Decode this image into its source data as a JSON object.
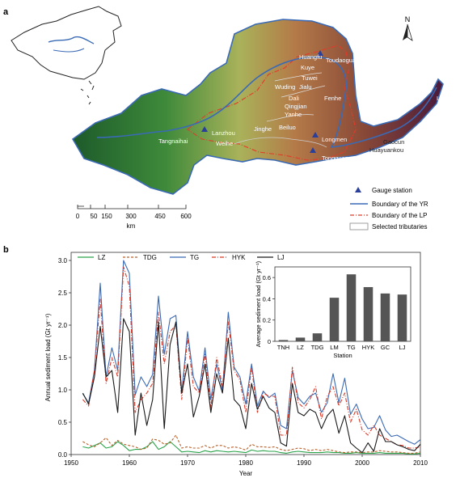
{
  "panel_a": {
    "label": "a",
    "north": "N",
    "places": [
      "Huangfu",
      "Toudaoguai",
      "Kuye",
      "Tuwei",
      "Wuding",
      "Jialu",
      "Dali",
      "Qingjian",
      "Yanhe",
      "Fenhe",
      "Lijin",
      "Lanzhou",
      "Tangnaihai",
      "Jinghe",
      "Beiluo",
      "Weihe",
      "Longmen",
      "Gaocun",
      "Huayuankou",
      "Tongguan"
    ],
    "scale": {
      "ticks": [
        "0",
        "50",
        "150",
        "300",
        "450",
        "600"
      ],
      "unit": "km"
    },
    "legend": [
      "Gauge station",
      "Boundary of the YR",
      "Boundary of the LP",
      "Selected tributaries"
    ],
    "colors": {
      "yr_boundary": "#3a6ab5",
      "lp_boundary": "#e23a2a",
      "gauge": "#2a3f9a"
    }
  },
  "panel_b": {
    "label": "b",
    "legend": [
      "LZ",
      "TDG",
      "TG",
      "HYK",
      "LJ"
    ]
  },
  "chart_data": [
    {
      "type": "line",
      "xlabel": "Year",
      "ylabel": "Annual sediment load (Gt yr⁻¹)",
      "xlim": [
        1950,
        2010
      ],
      "ylim": [
        0,
        3.0
      ],
      "xticks": [
        "1950",
        "1960",
        "1970",
        "1980",
        "1990",
        "2000",
        "2010"
      ],
      "yticks": [
        "0.0",
        "0.5",
        "1.0",
        "1.5",
        "2.0",
        "2.5",
        "3.0"
      ],
      "legend_position": "top",
      "x": [
        1952,
        1953,
        1954,
        1955,
        1956,
        1957,
        1958,
        1959,
        1960,
        1961,
        1962,
        1963,
        1964,
        1965,
        1966,
        1967,
        1968,
        1969,
        1970,
        1971,
        1972,
        1973,
        1974,
        1975,
        1976,
        1977,
        1978,
        1979,
        1980,
        1981,
        1982,
        1983,
        1984,
        1985,
        1986,
        1987,
        1988,
        1989,
        1990,
        1991,
        1992,
        1993,
        1994,
        1995,
        1996,
        1997,
        1998,
        1999,
        2000,
        2001,
        2002,
        2003,
        2004,
        2005,
        2006,
        2007,
        2008,
        2009,
        2010
      ],
      "series": [
        {
          "name": "LZ",
          "color": "#2aa34a",
          "style": "solid",
          "values": [
            0.12,
            0.1,
            0.14,
            0.18,
            0.1,
            0.12,
            0.2,
            0.14,
            0.06,
            0.08,
            0.08,
            0.12,
            0.2,
            0.08,
            0.12,
            0.2,
            0.12,
            0.04,
            0.05,
            0.04,
            0.03,
            0.06,
            0.04,
            0.06,
            0.05,
            0.04,
            0.05,
            0.04,
            0.03,
            0.07,
            0.05,
            0.06,
            0.05,
            0.05,
            0.03,
            0.02,
            0.04,
            0.05,
            0.04,
            0.03,
            0.03,
            0.03,
            0.04,
            0.03,
            0.03,
            0.02,
            0.02,
            0.03,
            0.02,
            0.02,
            0.02,
            0.03,
            0.02,
            0.02,
            0.02,
            0.02,
            0.01,
            0.01,
            0.02
          ]
        },
        {
          "name": "TDG",
          "color": "#b8602a",
          "style": "dashed",
          "values": [
            0.2,
            0.15,
            0.12,
            0.18,
            0.26,
            0.14,
            0.22,
            0.16,
            0.14,
            0.12,
            0.08,
            0.1,
            0.24,
            0.22,
            0.16,
            0.18,
            0.3,
            0.1,
            0.12,
            0.1,
            0.1,
            0.14,
            0.1,
            0.14,
            0.14,
            0.1,
            0.12,
            0.1,
            0.07,
            0.16,
            0.12,
            0.12,
            0.11,
            0.12,
            0.08,
            0.06,
            0.08,
            0.1,
            0.09,
            0.06,
            0.08,
            0.06,
            0.08,
            0.06,
            0.04,
            0.03,
            0.04,
            0.04,
            0.03,
            0.04,
            0.04,
            0.06,
            0.05,
            0.04,
            0.04,
            0.03,
            0.02,
            0.02,
            0.04
          ]
        },
        {
          "name": "TG",
          "color": "#3a6ab5",
          "style": "solid",
          "values": [
            0.94,
            0.8,
            1.3,
            2.65,
            1.2,
            1.65,
            1.3,
            3.0,
            2.8,
            0.92,
            1.2,
            1.05,
            1.24,
            2.45,
            1.55,
            2.1,
            2.15,
            0.95,
            1.9,
            1.2,
            0.98,
            1.65,
            0.85,
            1.4,
            1.0,
            2.2,
            1.35,
            1.2,
            0.78,
            1.4,
            0.75,
            0.98,
            0.88,
            0.95,
            0.45,
            0.4,
            1.3,
            0.88,
            0.78,
            0.9,
            0.95,
            0.65,
            0.8,
            1.25,
            0.8,
            1.18,
            0.62,
            0.78,
            0.55,
            0.4,
            0.42,
            0.6,
            0.38,
            0.28,
            0.3,
            0.25,
            0.2,
            0.16,
            0.23
          ]
        },
        {
          "name": "HYK",
          "color": "#d83a2a",
          "style": "dashdot",
          "values": [
            0.85,
            0.75,
            1.3,
            2.4,
            1.1,
            1.5,
            1.2,
            2.9,
            2.6,
            0.65,
            0.85,
            0.95,
            1.1,
            2.2,
            1.4,
            1.9,
            2.0,
            0.85,
            1.8,
            1.05,
            0.95,
            1.55,
            0.72,
            1.5,
            1.05,
            2.05,
            1.3,
            1.15,
            0.65,
            1.35,
            0.65,
            0.95,
            0.9,
            0.9,
            0.3,
            0.3,
            1.35,
            0.8,
            0.72,
            0.85,
            1.05,
            0.55,
            0.9,
            1.05,
            0.75,
            0.95,
            0.5,
            0.7,
            0.38,
            0.3,
            0.45,
            0.3,
            0.25,
            0.2,
            0.15,
            0.14,
            0.1,
            0.1,
            0.12
          ]
        },
        {
          "name": "LJ",
          "color": "#1a1a1a",
          "style": "solid",
          "values": [
            0.95,
            0.78,
            1.2,
            1.98,
            1.2,
            1.3,
            0.65,
            2.1,
            1.9,
            0.3,
            0.95,
            0.45,
            0.85,
            2.05,
            0.4,
            1.7,
            2.05,
            0.95,
            1.4,
            0.58,
            0.9,
            1.4,
            0.65,
            1.25,
            0.95,
            1.8,
            0.85,
            0.75,
            0.4,
            1.1,
            0.7,
            0.9,
            0.72,
            0.65,
            0.18,
            0.13,
            1.1,
            0.65,
            0.6,
            0.7,
            0.65,
            0.4,
            0.6,
            0.7,
            0.33,
            0.6,
            0.18,
            0.1,
            0.03,
            0.18,
            0.05,
            0.4,
            0.2,
            0.2,
            0.15,
            0.12,
            0.08,
            0.06,
            0.16
          ]
        }
      ]
    },
    {
      "type": "bar",
      "categories": [
        "TNH",
        "LZ",
        "TDG",
        "LM",
        "TG",
        "HYK",
        "GC",
        "LJ"
      ],
      "values": [
        0.012,
        0.035,
        0.075,
        0.41,
        0.63,
        0.51,
        0.45,
        0.44
      ],
      "xlabel": "Station",
      "ylabel": "Average sediment load (Gt yr⁻¹)",
      "ylim": [
        0,
        0.7
      ],
      "yticks": [
        "0",
        "0.2",
        "0.4",
        "0.6"
      ],
      "color": "#555555"
    }
  ]
}
